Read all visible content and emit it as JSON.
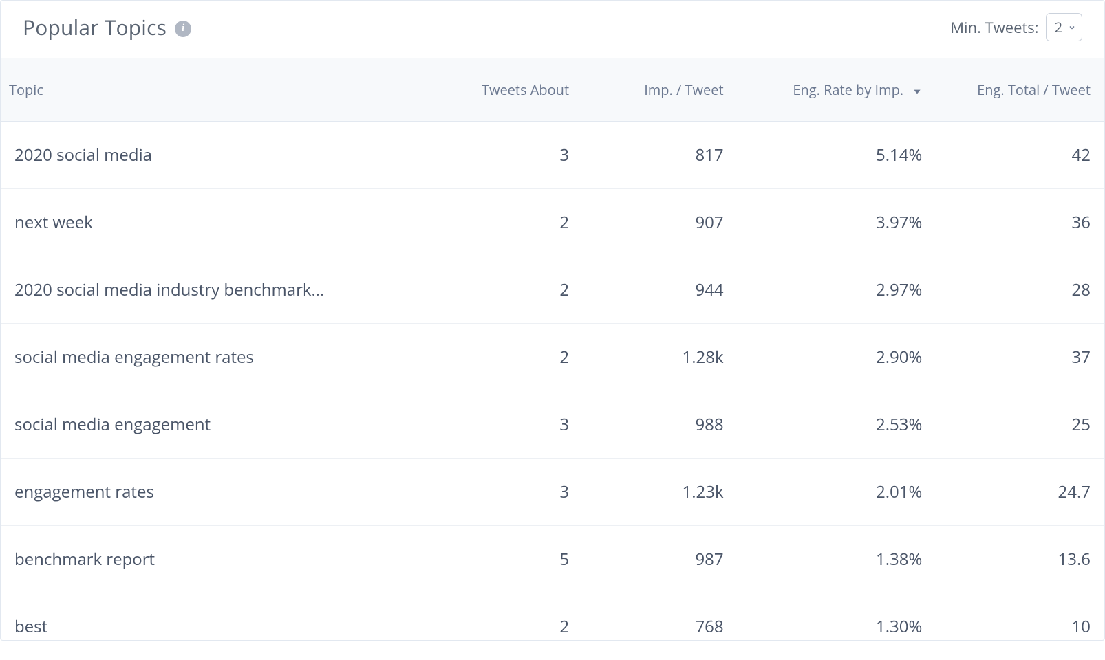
{
  "header": {
    "title": "Popular Topics",
    "info_tooltip": "i",
    "min_tweets_label": "Min. Tweets:",
    "min_tweets_value": "2"
  },
  "table": {
    "columns": {
      "topic": "Topic",
      "tweets_about": "Tweets About",
      "imp_per_tweet": "Imp. / Tweet",
      "eng_rate_by_imp": "Eng. Rate by Imp.",
      "eng_total_per_tweet": "Eng. Total / Tweet"
    },
    "sort": {
      "column": "eng_rate_by_imp",
      "direction": "desc"
    },
    "rows": [
      {
        "topic": "2020 social media",
        "tweets_about": "3",
        "imp_per_tweet": "817",
        "eng_rate_by_imp": "5.14%",
        "eng_total_per_tweet": "42"
      },
      {
        "topic": "next week",
        "tweets_about": "2",
        "imp_per_tweet": "907",
        "eng_rate_by_imp": "3.97%",
        "eng_total_per_tweet": "36"
      },
      {
        "topic": "2020 social media industry benchmark…",
        "tweets_about": "2",
        "imp_per_tweet": "944",
        "eng_rate_by_imp": "2.97%",
        "eng_total_per_tweet": "28"
      },
      {
        "topic": "social media engagement rates",
        "tweets_about": "2",
        "imp_per_tweet": "1.28k",
        "eng_rate_by_imp": "2.90%",
        "eng_total_per_tweet": "37"
      },
      {
        "topic": "social media engagement",
        "tweets_about": "3",
        "imp_per_tweet": "988",
        "eng_rate_by_imp": "2.53%",
        "eng_total_per_tweet": "25"
      },
      {
        "topic": "engagement rates",
        "tweets_about": "3",
        "imp_per_tweet": "1.23k",
        "eng_rate_by_imp": "2.01%",
        "eng_total_per_tweet": "24.7"
      },
      {
        "topic": "benchmark report",
        "tweets_about": "5",
        "imp_per_tweet": "987",
        "eng_rate_by_imp": "1.38%",
        "eng_total_per_tweet": "13.6"
      },
      {
        "topic": "best",
        "tweets_about": "2",
        "imp_per_tweet": "768",
        "eng_rate_by_imp": "1.30%",
        "eng_total_per_tweet": "10"
      }
    ]
  },
  "styles": {
    "colors": {
      "background": "#ffffff",
      "panel_border": "#e2e8f0",
      "header_bg": "#f7f9fb",
      "row_border": "#edf0f4",
      "text_primary": "#4a5568",
      "text_header": "#6b7890",
      "title_text": "#5a6472",
      "info_icon_bg": "#b0b7c3",
      "select_border": "#cbd2dc"
    },
    "typography": {
      "title_size_pt": 22,
      "header_size_pt": 15,
      "body_size_pt": 18,
      "control_label_size_pt": 16
    },
    "layout": {
      "column_widths_pct": {
        "topic": 39,
        "tweets_about": 13,
        "imp_per_tweet": 14,
        "eng_rate_by_imp": 18,
        "eng_total_per_tweet": 16
      },
      "text_align": {
        "topic": "left",
        "tweets_about": "right",
        "imp_per_tweet": "right",
        "eng_rate_by_imp": "right",
        "eng_total_per_tweet": "right"
      }
    }
  }
}
